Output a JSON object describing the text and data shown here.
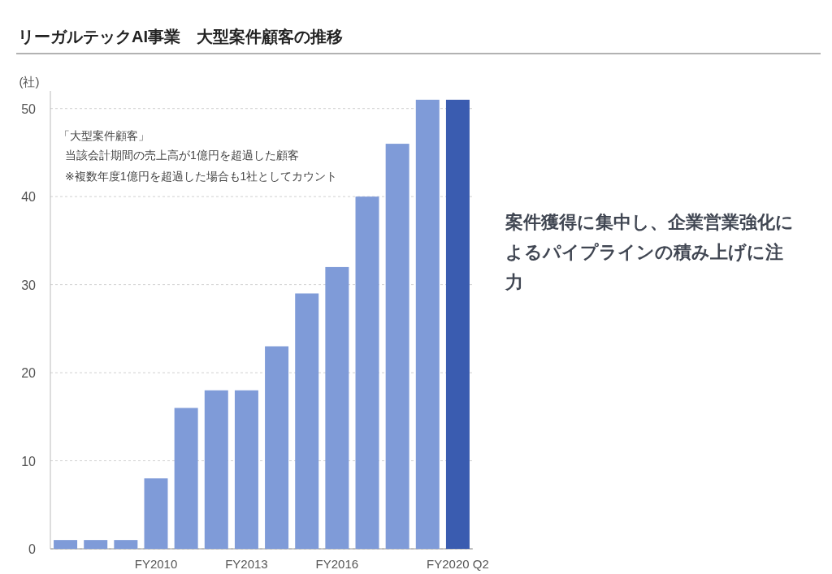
{
  "chart_data": {
    "type": "bar",
    "title": "リーガルテックAI事業　大型案件顧客の推移",
    "ylabel": "(社)",
    "categories": [
      null,
      null,
      null,
      "FY2010",
      null,
      null,
      "FY2013",
      null,
      null,
      "FY2016",
      null,
      null,
      null,
      "FY2020 Q2"
    ],
    "values": [
      1,
      1,
      1,
      8,
      16,
      18,
      18,
      23,
      29,
      32,
      40,
      46,
      51,
      51
    ],
    "colors": [
      "#7f9bd8",
      "#7f9bd8",
      "#7f9bd8",
      "#7f9bd8",
      "#7f9bd8",
      "#7f9bd8",
      "#7f9bd8",
      "#7f9bd8",
      "#7f9bd8",
      "#7f9bd8",
      "#7f9bd8",
      "#7f9bd8",
      "#7f9bd8",
      "#3a5cb0"
    ],
    "ylim": [
      0,
      52
    ],
    "yticks": [
      0,
      10,
      20,
      30,
      40,
      50
    ],
    "grid": "y",
    "annotations": [
      "「大型案件顧客」",
      "当該会計期間の売上高が1億円を超過した顧客",
      "※複数年度1億円を超過した場合も1社としてカウント",
      "案件獲得に集中し、企業営業強化によるパイプラインの積み上げに注力"
    ]
  }
}
